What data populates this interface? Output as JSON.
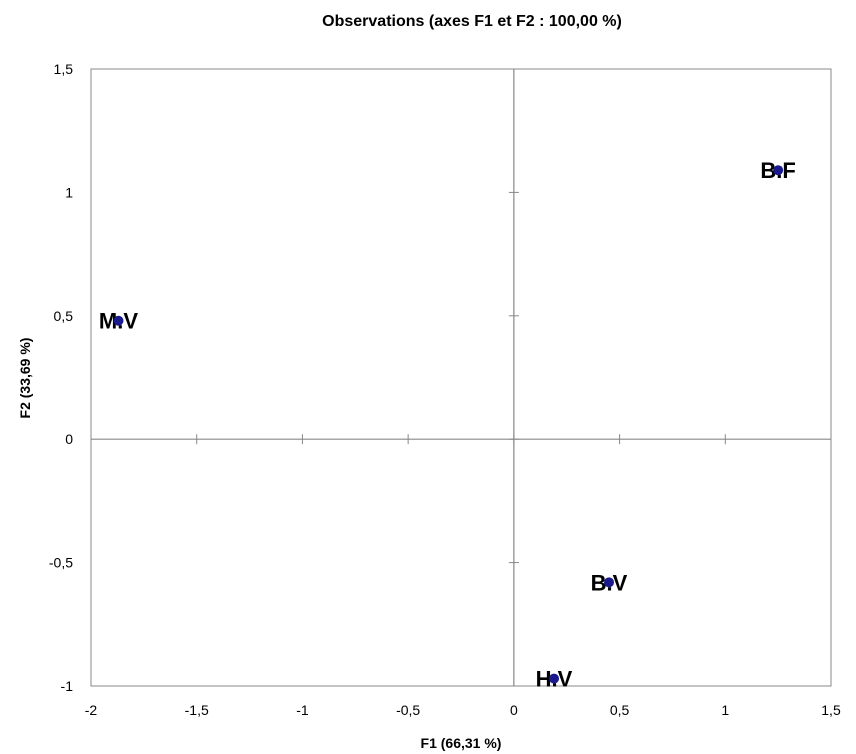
{
  "chart_data": {
    "type": "scatter",
    "title": "Observations (axes F1 et F2 : 100,00 %)",
    "xlabel": "F1 (66,31 %)",
    "ylabel": "F2 (33,69 %)",
    "xlim": [
      -2,
      1.5
    ],
    "ylim": [
      -1,
      1.5
    ],
    "xticks": [
      -2,
      -1.5,
      -1,
      -0.5,
      0,
      0.5,
      1,
      1.5
    ],
    "yticks": [
      -1,
      -0.5,
      0,
      0.5,
      1,
      1.5
    ],
    "xtick_labels": [
      "-2",
      "-1,5",
      "-1",
      "-0,5",
      "0",
      "0,5",
      "1",
      "1,5"
    ],
    "ytick_labels": [
      "-1",
      "-0,5",
      "0",
      "0,5",
      "1",
      "1,5"
    ],
    "grid": false,
    "marker_color": "#1a1a8c",
    "points": [
      {
        "label": "B.F",
        "x": 1.25,
        "y": 1.09
      },
      {
        "label": "M.V",
        "x": -1.87,
        "y": 0.48
      },
      {
        "label": "B.V",
        "x": 0.45,
        "y": -0.58
      },
      {
        "label": "H.V",
        "x": 0.19,
        "y": -0.97
      }
    ]
  }
}
